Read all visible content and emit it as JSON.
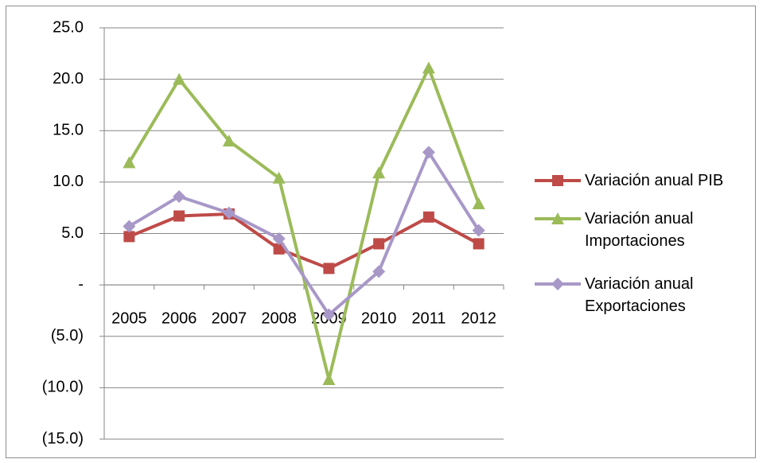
{
  "chart_data": {
    "type": "line",
    "categories": [
      "2005",
      "2006",
      "2007",
      "2008",
      "2009",
      "2010",
      "2011",
      "2012"
    ],
    "series": [
      {
        "name": "Variación anual PIB",
        "color": "#be4b48",
        "marker": "square",
        "values": [
          4.7,
          6.7,
          6.9,
          3.5,
          1.6,
          4.0,
          6.6,
          4.0
        ]
      },
      {
        "name": "Variación anual Importaciones",
        "color": "#9bbb59",
        "marker": "triangle",
        "values": [
          11.9,
          20.0,
          14.0,
          10.4,
          -9.2,
          10.9,
          21.1,
          7.9
        ]
      },
      {
        "name": "Variación anual Exportaciones",
        "color": "#a898c8",
        "marker": "diamond",
        "values": [
          5.7,
          8.6,
          7.0,
          4.5,
          -2.9,
          1.3,
          12.9,
          5.3
        ]
      }
    ],
    "ylim": [
      -15,
      25
    ],
    "yticks": [
      {
        "value": -15,
        "label": "(15.0)"
      },
      {
        "value": -10,
        "label": "(10.0)"
      },
      {
        "value": -5,
        "label": "(5.0)"
      },
      {
        "value": 0,
        "label": "-"
      },
      {
        "value": 5,
        "label": "5.0"
      },
      {
        "value": 10,
        "label": "10.0"
      },
      {
        "value": 15,
        "label": "15.0"
      },
      {
        "value": 20,
        "label": "20.0"
      },
      {
        "value": 25,
        "label": "25.0"
      }
    ],
    "grid": true,
    "legend": "right"
  }
}
